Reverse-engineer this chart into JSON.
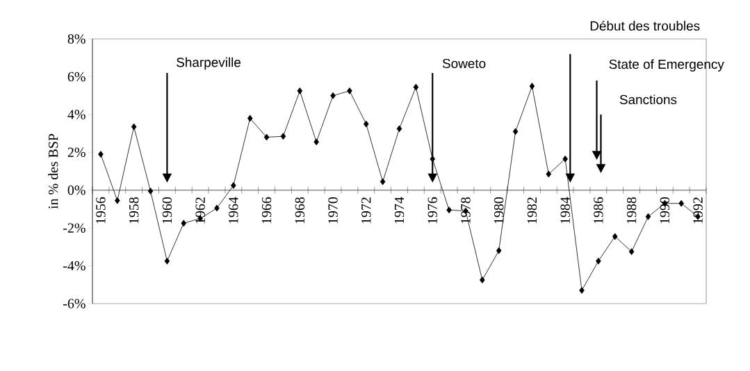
{
  "chart_data": {
    "type": "line",
    "ylabel": "in % des BSP",
    "categories": [
      "1956",
      null,
      "1958",
      null,
      "1960",
      null,
      "1962",
      null,
      "1964",
      null,
      "1966",
      null,
      "1968",
      null,
      "1970",
      null,
      "1972",
      null,
      "1974",
      null,
      "1976",
      null,
      "1978",
      null,
      "1980",
      null,
      "1982",
      null,
      "1984",
      null,
      "1986",
      null,
      "1988",
      null,
      "1990",
      null,
      "1992"
    ],
    "values": [
      1.9,
      -0.55,
      3.35,
      -0.05,
      -3.75,
      -1.75,
      -1.5,
      -0.95,
      0.25,
      3.8,
      2.8,
      2.85,
      5.25,
      2.55,
      5.0,
      5.25,
      3.5,
      0.45,
      3.25,
      5.45,
      1.65,
      -1.05,
      -1.1,
      -4.75,
      -3.2,
      3.1,
      5.5,
      0.85,
      1.65,
      -5.3,
      -3.75,
      -2.45,
      -3.25,
      -1.4,
      -0.7,
      -0.7,
      -1.4
    ],
    "color": "#000000",
    "marker": "diamond",
    "line_style": "solid",
    "ylim": [
      -6,
      8
    ],
    "yticks": [
      {
        "value": -6,
        "label": "-6%"
      },
      {
        "value": -4,
        "label": "-4%"
      },
      {
        "value": -2,
        "label": "-2%"
      },
      {
        "value": 0,
        "label": "0%"
      },
      {
        "value": 2,
        "label": "2%"
      },
      {
        "value": 4,
        "label": "4%"
      },
      {
        "value": 6,
        "label": "6%"
      },
      {
        "value": 8,
        "label": "8%"
      }
    ],
    "annotations": [
      "Sharpeville",
      "Soweto",
      "Début des troubles",
      "State of Emergency",
      "Sanctions"
    ]
  }
}
